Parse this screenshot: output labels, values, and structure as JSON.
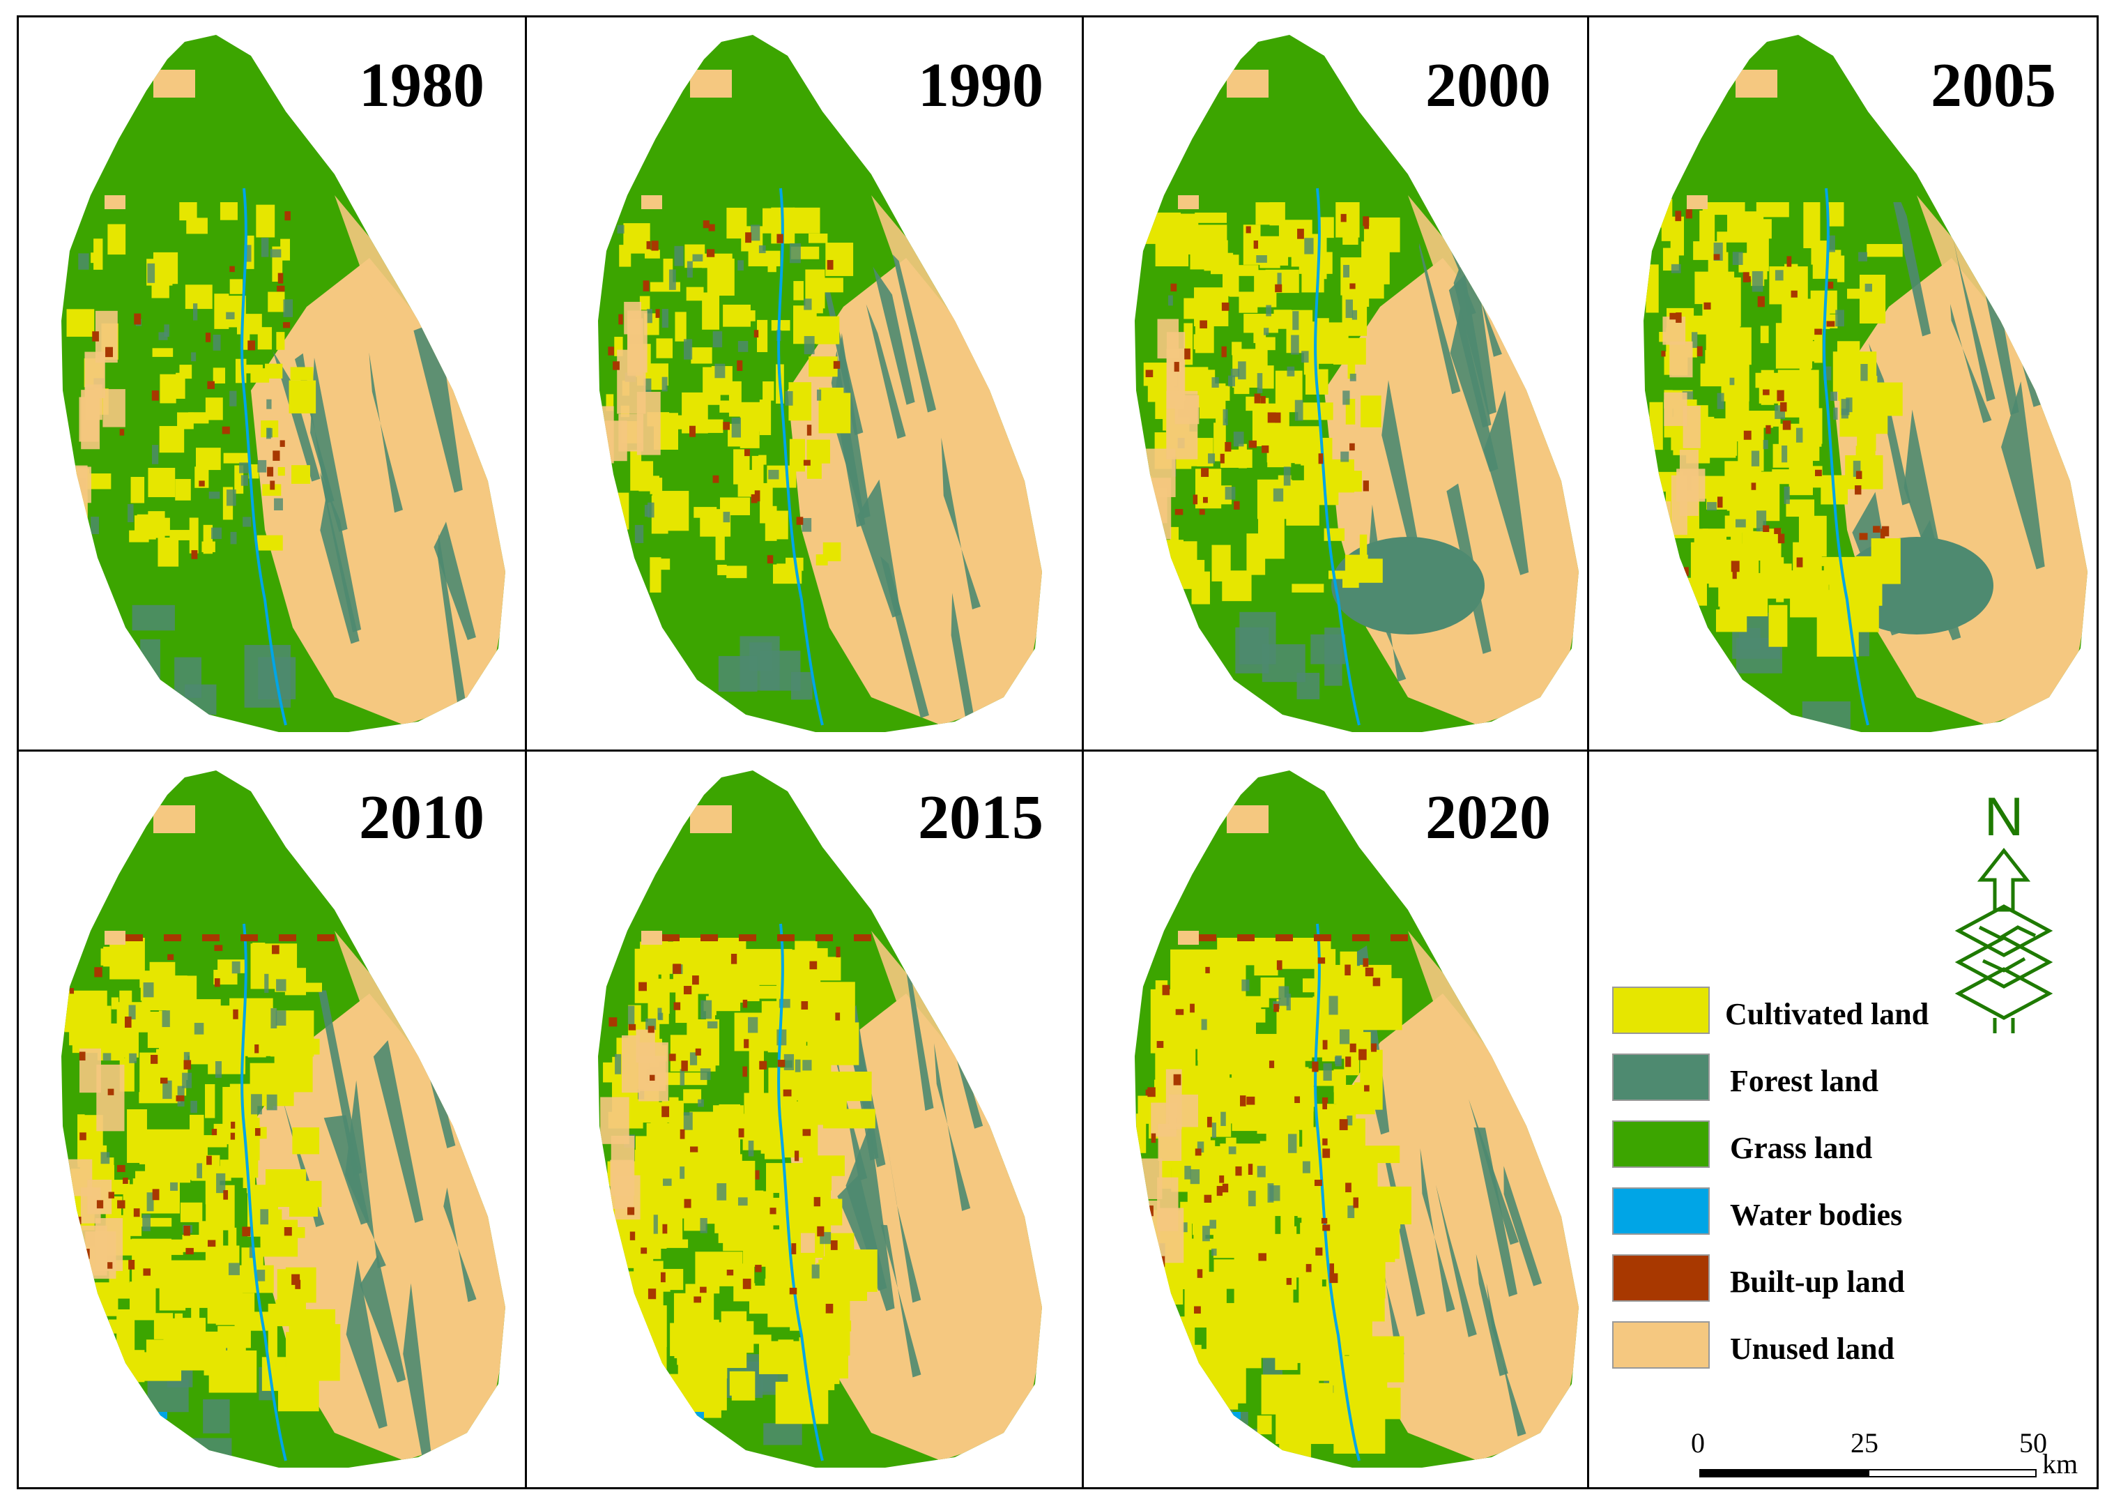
{
  "panels": [
    {
      "year": "1980"
    },
    {
      "year": "1990"
    },
    {
      "year": "2000"
    },
    {
      "year": "2005"
    },
    {
      "year": "2010"
    },
    {
      "year": "2015"
    },
    {
      "year": "2020"
    }
  ],
  "legend": {
    "items": [
      {
        "label": "Cultivated land",
        "color": "#e6e600"
      },
      {
        "label": "Forest land",
        "color": "#4e8a70"
      },
      {
        "label": "Grass land",
        "color": "#3ca500"
      },
      {
        "label": "Water bodies",
        "color": "#00a5e6"
      },
      {
        "label": "Built-up land",
        "color": "#a83800"
      },
      {
        "label": "Unused land",
        "color": "#f5c880"
      }
    ]
  },
  "north_arrow": {
    "label": "N",
    "icon": "north-arrow-icon",
    "color": "#1e7a00"
  },
  "scale_bar": {
    "ticks": [
      "0",
      "25",
      "50"
    ],
    "unit": "km"
  }
}
